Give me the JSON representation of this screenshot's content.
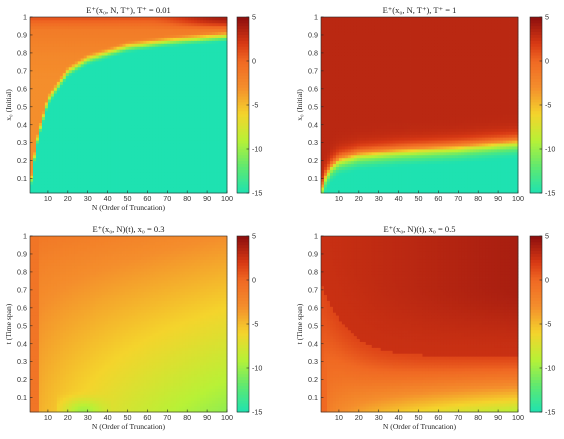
{
  "chart_data": [
    {
      "type": "heatmap",
      "title": "E⁺(x₀, N, T⁺),    T⁺ = 0.01",
      "xlabel": "N (Order of Truncation)",
      "ylabel": "x₀ (Initial)",
      "xlim": [
        1,
        100
      ],
      "ylim": [
        0.02,
        1
      ],
      "x_ticks": [
        "10",
        "20",
        "30",
        "40",
        "50",
        "60",
        "70",
        "80",
        "90",
        "100"
      ],
      "y_ticks": [
        "0.1",
        "0.2",
        "0.3",
        "0.4",
        "0.5",
        "0.6",
        "0.7",
        "0.8",
        "0.9",
        "1"
      ],
      "colorbar": {
        "range": [
          -15,
          5
        ],
        "ticks": [
          "5",
          "0",
          "-5",
          "-10",
          "-15"
        ]
      },
      "boundary_y": [
        [
          1,
          0.0
        ],
        [
          3,
          0.17
        ],
        [
          5,
          0.3
        ],
        [
          10,
          0.5
        ],
        [
          20,
          0.66
        ],
        [
          30,
          0.73
        ],
        [
          50,
          0.8
        ],
        [
          70,
          0.83
        ],
        [
          100,
          0.86
        ]
      ],
      "upper_levels": [
        [
          0.65,
          -3
        ],
        [
          0.78,
          -2.5
        ],
        [
          0.93,
          -1.5
        ],
        [
          1.0,
          1
        ]
      ],
      "top_right_peak": 4
    },
    {
      "type": "heatmap",
      "title": "E⁺(x₀, N, T⁺),    T⁺ = 1",
      "xlabel": "",
      "ylabel": "x₀ (Initial)",
      "xlim": [
        1,
        100
      ],
      "ylim": [
        0.02,
        1
      ],
      "x_ticks": [
        "10",
        "20",
        "30",
        "40",
        "50",
        "60",
        "70",
        "80",
        "90",
        "100"
      ],
      "y_ticks": [
        "0.1",
        "0.2",
        "0.3",
        "0.4",
        "0.5",
        "0.6",
        "0.7",
        "0.8",
        "0.9",
        "1"
      ],
      "colorbar": {
        "range": [
          -15,
          5
        ],
        "ticks": [
          "5",
          "0",
          "-5",
          "-10",
          "-15"
        ]
      },
      "boundary_y": [
        [
          1,
          0.02
        ],
        [
          3,
          0.1
        ],
        [
          6,
          0.16
        ],
        [
          10,
          0.2
        ],
        [
          20,
          0.23
        ],
        [
          40,
          0.25
        ],
        [
          70,
          0.27
        ],
        [
          100,
          0.3
        ]
      ],
      "upper_value": 3.2
    },
    {
      "type": "heatmap",
      "title": "E⁺(x₀, N)(t),    x₀ = 0.3",
      "xlabel": "N (Order of Truncation)",
      "ylabel": "t (Time span)",
      "xlim": [
        1,
        100
      ],
      "ylim": [
        0.02,
        1
      ],
      "x_ticks": [
        "10",
        "20",
        "30",
        "40",
        "50",
        "60",
        "70",
        "80",
        "90",
        "100"
      ],
      "y_ticks": [
        "0.1",
        "0.2",
        "0.3",
        "0.4",
        "0.5",
        "0.6",
        "0.7",
        "0.8",
        "0.9",
        "1"
      ],
      "colorbar": {
        "range": [
          -15,
          5
        ],
        "ticks": [
          "5",
          "0",
          "-5",
          "-10",
          "-15"
        ]
      }
    },
    {
      "type": "heatmap",
      "title": "E⁺(x₀, N)(t),    x₀ = 0.5",
      "xlabel": "N (Order of Truncation)",
      "ylabel": "t (Time span)",
      "xlim": [
        1,
        100
      ],
      "ylim": [
        0.02,
        1
      ],
      "x_ticks": [
        "10",
        "20",
        "30",
        "40",
        "50",
        "60",
        "70",
        "80",
        "90",
        "100"
      ],
      "y_ticks": [
        "0.1",
        "0.2",
        "0.3",
        "0.4",
        "0.5",
        "0.6",
        "0.7",
        "0.8",
        "0.9",
        "1"
      ],
      "colorbar": {
        "range": [
          -15,
          5
        ],
        "ticks": [
          "5",
          "0",
          "-5",
          "-10",
          "-15"
        ]
      }
    }
  ]
}
